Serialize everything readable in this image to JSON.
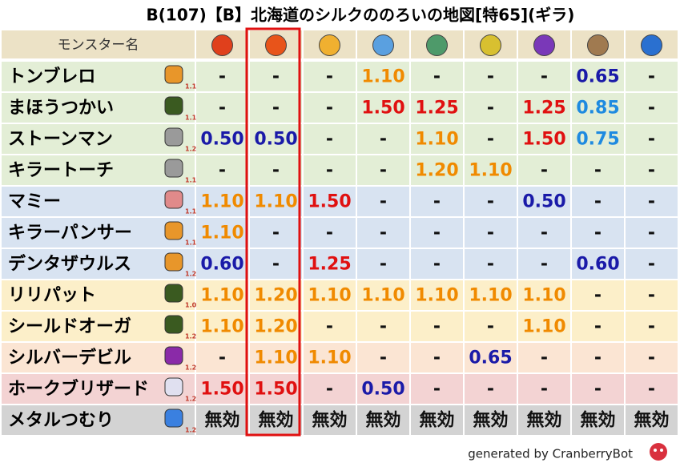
{
  "title": "B(107)【B】北海道のシルクののろいの地図[特65](ギラ)",
  "table": {
    "header": "モンスター名",
    "rows": [
      {
        "name": "トンブレロ",
        "level": "1.1",
        "bg": "#e3eed6",
        "cells": [
          "-",
          "-",
          "-",
          "1.10",
          "-",
          "-",
          "-",
          "0.65",
          "-"
        ]
      },
      {
        "name": "まほうつかい",
        "level": "1.1",
        "bg": "#e3eed6",
        "cells": [
          "-",
          "-",
          "-",
          "1.50",
          "1.25",
          "-",
          "1.25",
          "0.85",
          "-"
        ]
      },
      {
        "name": "ストーンマン",
        "level": "1.2",
        "bg": "#e3eed6",
        "cells": [
          "0.50",
          "0.50",
          "-",
          "-",
          "1.10",
          "-",
          "1.50",
          "0.75",
          "-"
        ]
      },
      {
        "name": "キラートーチ",
        "level": "1.1",
        "bg": "#e3eed6",
        "cells": [
          "-",
          "-",
          "-",
          "-",
          "1.20",
          "1.10",
          "-",
          "-",
          "-"
        ]
      },
      {
        "name": "マミー",
        "level": "1.1",
        "bg": "#d8e3f1",
        "cells": [
          "1.10",
          "1.10",
          "1.50",
          "-",
          "-",
          "-",
          "0.50",
          "-",
          "-"
        ]
      },
      {
        "name": "キラーパンサー",
        "level": "1.1",
        "bg": "#d8e3f1",
        "cells": [
          "1.10",
          "-",
          "-",
          "-",
          "-",
          "-",
          "-",
          "-",
          "-"
        ]
      },
      {
        "name": "デンタザウルス",
        "level": "1.2",
        "bg": "#d8e3f1",
        "cells": [
          "0.60",
          "-",
          "1.25",
          "-",
          "-",
          "-",
          "-",
          "0.60",
          "-"
        ]
      },
      {
        "name": "リリパット",
        "level": "1.0",
        "bg": "#fcefc9",
        "cells": [
          "1.10",
          "1.20",
          "1.10",
          "1.10",
          "1.10",
          "1.10",
          "1.10",
          "-",
          "-"
        ]
      },
      {
        "name": "シールドオーガ",
        "level": "1.2",
        "bg": "#fcefc9",
        "cells": [
          "1.10",
          "1.20",
          "-",
          "-",
          "-",
          "-",
          "1.10",
          "-",
          "-"
        ]
      },
      {
        "name": "シルバーデビル",
        "level": "1.2",
        "bg": "#fbe5d3",
        "cells": [
          "-",
          "1.10",
          "1.10",
          "-",
          "-",
          "0.65",
          "-",
          "-",
          "-"
        ]
      },
      {
        "name": "ホークブリザード",
        "level": "1.2",
        "bg": "#f3d3d3",
        "cells": [
          "1.50",
          "1.50",
          "-",
          "0.50",
          "-",
          "-",
          "-",
          "-",
          "-"
        ]
      },
      {
        "name": "メタルつむり",
        "level": "1.2",
        "bg": "#d3d3d3",
        "cells": [
          "無効",
          "無効",
          "無効",
          "無効",
          "無効",
          "無効",
          "無効",
          "無効",
          "無効"
        ]
      }
    ]
  },
  "footer": "generated by CranberryBot"
}
